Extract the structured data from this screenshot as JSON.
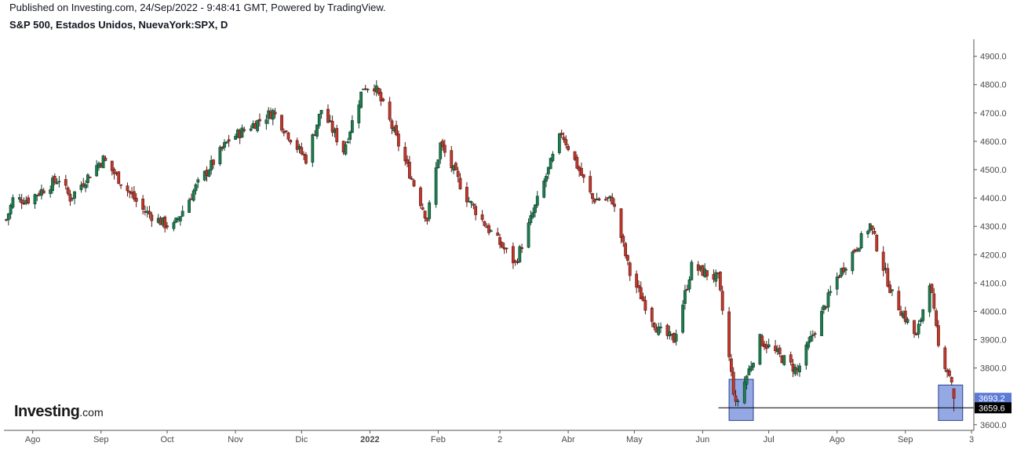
{
  "header": {
    "published": "Published on Investing.com, 24/Sep/2022 - 9:48:41 GMT, Powered by TradingView.",
    "symbol": "S&P 500, Estados Unidos, NuevaYork:SPX, D"
  },
  "logo": {
    "brand": "Investing",
    "domain": ".com"
  },
  "colors": {
    "up": "#26a69a",
    "down": "#ef5350",
    "up_fill": "#1e7d4e",
    "down_fill": "#c0392b",
    "highlight": "#5b7bd5",
    "axis": "#555555"
  },
  "chart_data": {
    "type": "candlestick",
    "title": "S&P 500, Estados Unidos, NuevaYork:SPX, D",
    "x_range": [
      "2021-07-20",
      "2022-09-23"
    ],
    "ylim": [
      3580,
      4960
    ],
    "y_ticks": [
      "4900.0",
      "4800.0",
      "4700.0",
      "4600.0",
      "4500.0",
      "4400.0",
      "4300.0",
      "4200.0",
      "4100.0",
      "4000.0",
      "3900.0",
      "3800.0",
      "3600.0"
    ],
    "x_ticks": [
      {
        "date": "2021-08-01",
        "label": "Ago",
        "bold": false
      },
      {
        "date": "2021-09-01",
        "label": "Sep",
        "bold": false
      },
      {
        "date": "2021-10-01",
        "label": "Oct",
        "bold": false
      },
      {
        "date": "2021-11-01",
        "label": "Nov",
        "bold": false
      },
      {
        "date": "2021-12-01",
        "label": "Dic",
        "bold": false
      },
      {
        "date": "2022-01-01",
        "label": "2022",
        "bold": true
      },
      {
        "date": "2022-02-01",
        "label": "Feb",
        "bold": false
      },
      {
        "date": "2022-03-01",
        "label": "2",
        "bold": false
      },
      {
        "date": "2022-04-01",
        "label": "Abr",
        "bold": false
      },
      {
        "date": "2022-05-01",
        "label": "May",
        "bold": false
      },
      {
        "date": "2022-06-01",
        "label": "Jun",
        "bold": false
      },
      {
        "date": "2022-07-01",
        "label": "Jul",
        "bold": false
      },
      {
        "date": "2022-08-01",
        "label": "Ago",
        "bold": false
      },
      {
        "date": "2022-09-01",
        "label": "Sep",
        "bold": false
      },
      {
        "date": "2022-10-01",
        "label": "3",
        "bold": false
      }
    ],
    "price_labels": [
      {
        "value": 3693.2,
        "text": "3693.2",
        "style": "highlight"
      },
      {
        "value": 3659.6,
        "text": "3659.6",
        "style": "dark"
      }
    ],
    "horizontal_line": {
      "value": 3659.6,
      "from": "2022-06-16",
      "to": "2022-09-23"
    },
    "highlight_boxes": [
      {
        "from": "2022-06-13",
        "to": "2022-06-24",
        "low": 3615,
        "high": 3760
      },
      {
        "from": "2022-09-16",
        "to": "2022-09-27",
        "low": 3615,
        "high": 3740
      }
    ],
    "close_anchors": [
      [
        "2021-07-20",
        4323
      ],
      [
        "2021-07-23",
        4395
      ],
      [
        "2021-07-30",
        4395
      ],
      [
        "2021-08-13",
        4468
      ],
      [
        "2021-08-18",
        4400
      ],
      [
        "2021-08-31",
        4523
      ],
      [
        "2021-09-02",
        4537
      ],
      [
        "2021-09-20",
        4358
      ],
      [
        "2021-09-30",
        4307
      ],
      [
        "2021-10-04",
        4300
      ],
      [
        "2021-10-14",
        4438
      ],
      [
        "2021-10-29",
        4605
      ],
      [
        "2021-11-18",
        4704
      ],
      [
        "2021-11-30",
        4567
      ],
      [
        "2021-12-03",
        4538
      ],
      [
        "2021-12-10",
        4712
      ],
      [
        "2021-12-20",
        4568
      ],
      [
        "2021-12-29",
        4793
      ],
      [
        "2022-01-03",
        4796
      ],
      [
        "2022-01-10",
        4670
      ],
      [
        "2022-01-27",
        4326
      ],
      [
        "2022-02-02",
        4589
      ],
      [
        "2022-02-14",
        4401
      ],
      [
        "2022-02-24",
        4288
      ],
      [
        "2022-03-08",
        4170
      ],
      [
        "2022-03-29",
        4631
      ],
      [
        "2022-04-12",
        4397
      ],
      [
        "2022-04-21",
        4393
      ],
      [
        "2022-04-29",
        4132
      ],
      [
        "2022-05-12",
        3930
      ],
      [
        "2022-05-19",
        3900
      ],
      [
        "2022-05-27",
        4158
      ],
      [
        "2022-06-08",
        4115
      ],
      [
        "2022-06-16",
        3666
      ],
      [
        "2022-06-27",
        3900
      ],
      [
        "2022-07-14",
        3790
      ],
      [
        "2022-08-01",
        4119
      ],
      [
        "2022-08-16",
        4305
      ],
      [
        "2022-08-26",
        4058
      ],
      [
        "2022-09-06",
        3908
      ],
      [
        "2022-09-12",
        4110
      ],
      [
        "2022-09-16",
        3873
      ],
      [
        "2022-09-22",
        3757
      ],
      [
        "2022-09-23",
        3693
      ]
    ],
    "last_candle": {
      "date": "2022-09-23",
      "open": 3727,
      "high": 3727,
      "low": 3647,
      "close": 3693
    }
  }
}
